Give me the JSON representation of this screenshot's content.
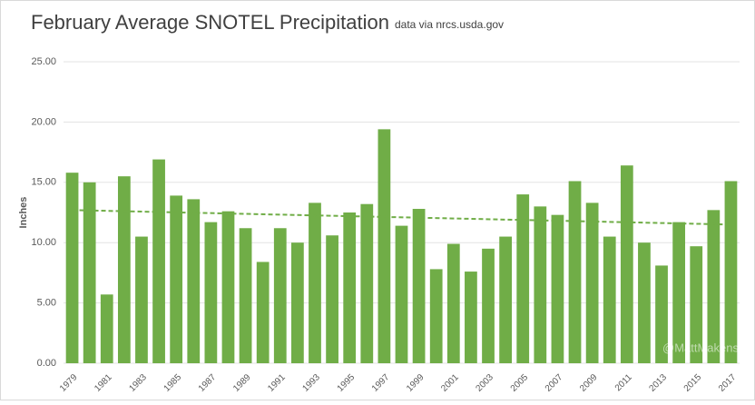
{
  "chart_data": {
    "type": "bar",
    "title": "February Average SNOTEL Precipitation",
    "subtitle": "data via nrcs.usda.gov",
    "y_label": "Inches",
    "watermark": "@MattMakens",
    "categories": [
      "1979",
      null,
      "1981",
      null,
      "1983",
      null,
      "1985",
      null,
      "1987",
      null,
      "1989",
      null,
      "1991",
      null,
      "1993",
      null,
      "1995",
      null,
      "1997",
      null,
      "1999",
      null,
      "2001",
      null,
      "2003",
      null,
      "2005",
      null,
      "2007",
      null,
      "2009",
      null,
      "2011",
      null,
      "2013",
      null,
      "2015",
      null,
      "2017"
    ],
    "values": [
      15.8,
      15.0,
      5.7,
      15.5,
      10.5,
      16.9,
      13.9,
      13.6,
      11.7,
      12.6,
      11.2,
      8.4,
      11.2,
      10.0,
      13.3,
      10.6,
      12.5,
      13.2,
      19.4,
      11.4,
      12.8,
      7.8,
      9.9,
      7.6,
      9.5,
      10.5,
      14.0,
      13.0,
      12.3,
      15.1,
      13.3,
      10.5,
      16.4,
      10.0,
      8.1,
      11.7,
      9.7,
      12.7,
      15.1
    ],
    "color": "#70ad47",
    "trendline": {
      "start": 12.7,
      "end": 11.5,
      "color": "#70ad47"
    },
    "ylim": [
      0,
      25
    ],
    "yticks": [
      {
        "value": 0,
        "label": "0.00"
      },
      {
        "value": 5,
        "label": "5.00"
      },
      {
        "value": 10,
        "label": "10.00"
      },
      {
        "value": 15,
        "label": "15.00"
      },
      {
        "value": 20,
        "label": "20.00"
      },
      {
        "value": 25,
        "label": "25.00"
      }
    ],
    "grid": true
  }
}
